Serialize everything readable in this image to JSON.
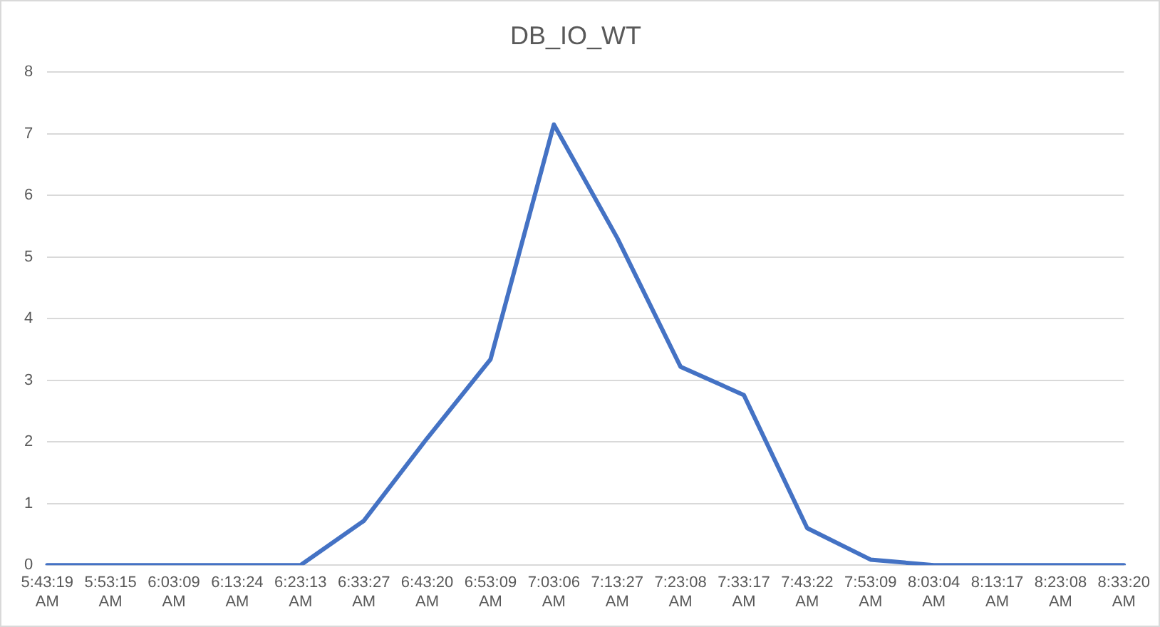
{
  "chart_data": {
    "type": "line",
    "title": "DB_IO_WT",
    "categories": [
      "5:43:19 AM",
      "5:53:15 AM",
      "6:03:09 AM",
      "6:13:24 AM",
      "6:23:13 AM",
      "6:33:27 AM",
      "6:43:20 AM",
      "6:53:09 AM",
      "7:03:06 AM",
      "7:13:27 AM",
      "7:23:08 AM",
      "7:33:17 AM",
      "7:43:22 AM",
      "7:53:09 AM",
      "8:03:04 AM",
      "8:13:17 AM",
      "8:23:08 AM",
      "8:33:20 AM"
    ],
    "series": [
      {
        "color": "#4472c4",
        "values": [
          0,
          0,
          0,
          0,
          0,
          0.72,
          2.06,
          3.34,
          7.15,
          5.31,
          3.22,
          2.76,
          0.6,
          0.09,
          0,
          0,
          0,
          0
        ]
      }
    ],
    "ylim": [
      0,
      8
    ],
    "yticks": [
      0,
      1,
      2,
      3,
      4,
      5,
      6,
      7,
      8
    ],
    "grid": "y",
    "legend": false,
    "marker": "none",
    "line_style": "solid"
  }
}
